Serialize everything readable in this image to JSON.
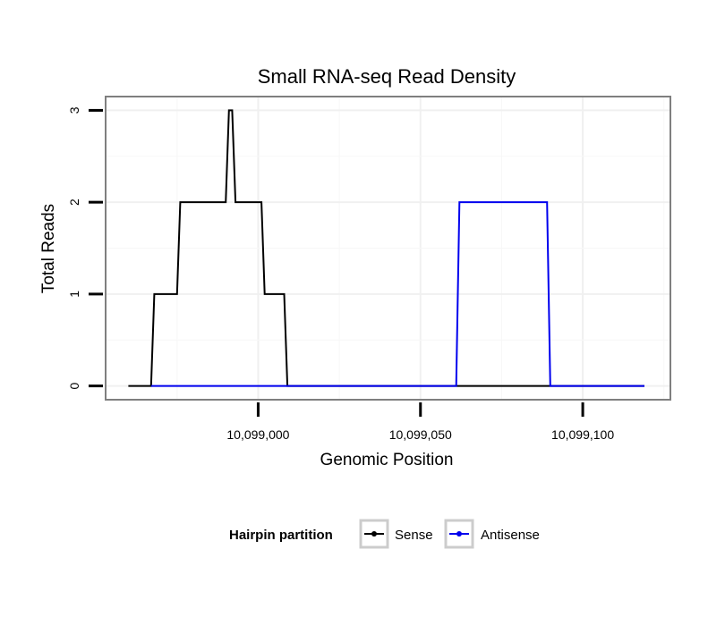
{
  "chart_data": {
    "type": "line",
    "title": "Small RNA-seq Read Density",
    "xlabel": "Genomic Position",
    "ylabel": "Total Reads",
    "xlim": [
      10098953,
      10099127
    ],
    "ylim": [
      -0.15,
      3.15
    ],
    "x_ticks": [
      10099000,
      10099050,
      10099100
    ],
    "x_tick_labels": [
      "10,099,000",
      "10,099,050",
      "10,099,100"
    ],
    "y_ticks": [
      0,
      1,
      2,
      3
    ],
    "y_tick_labels": [
      "0",
      "1",
      "2",
      "3"
    ],
    "grid": true,
    "legend": {
      "title": "Hairpin partition",
      "position": "bottom",
      "entries": [
        "Sense",
        "Antisense"
      ]
    },
    "series": [
      {
        "name": "Sense",
        "color": "#000000",
        "x": [
          10098960,
          10098967,
          10098968,
          10098975,
          10098976,
          10098990,
          10098991,
          10098992,
          10098993,
          10099001,
          10099002,
          10099008,
          10099009,
          10099119
        ],
        "values": [
          0,
          0,
          1,
          1,
          2,
          2,
          3,
          3,
          2,
          2,
          1,
          1,
          0,
          0
        ]
      },
      {
        "name": "Antisense",
        "color": "#0000ee",
        "x": [
          10098967,
          10099061,
          10099062,
          10099089,
          10099090,
          10099119
        ],
        "values": [
          0,
          0,
          2,
          2,
          0,
          0
        ]
      }
    ]
  }
}
